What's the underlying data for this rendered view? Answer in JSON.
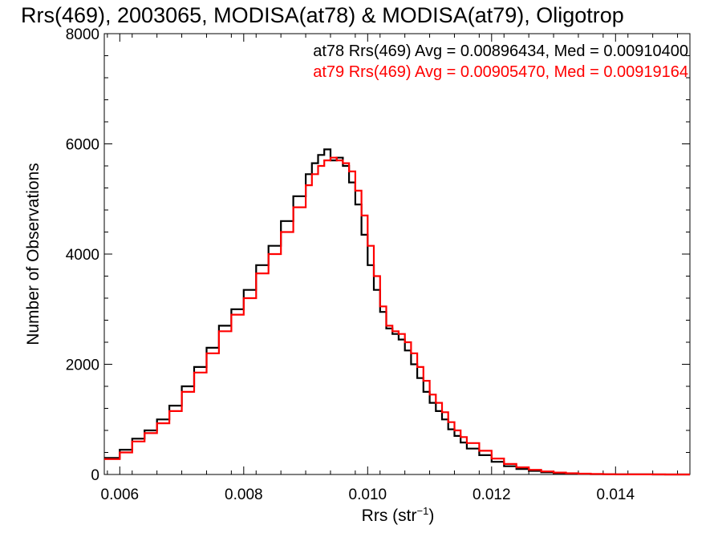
{
  "chart_data": {
    "type": "line",
    "title": "Rrs(469), 2003065, MODISA(at78) & MODISA(at79), Oligotrop",
    "xlabel": "Rrs (str",
    "xlabel_sup": "−1",
    "xlabel_close": ")",
    "ylabel": "Number of Observations",
    "xlim": [
      0.00575,
      0.0152
    ],
    "ylim": [
      0,
      8000
    ],
    "x_ticks": [
      "0.006",
      "0.008",
      "0.010",
      "0.012",
      "0.014"
    ],
    "y_ticks": [
      "0",
      "2000",
      "4000",
      "6000",
      "8000"
    ],
    "grid": false,
    "legend_position": "top-right",
    "series": [
      {
        "name": "at78 Rrs(469) Avg = 0.00896434, Med = 0.00910400",
        "color": "#000000",
        "x": [
          0.00575,
          0.006,
          0.0062,
          0.0064,
          0.0066,
          0.0068,
          0.007,
          0.0072,
          0.0074,
          0.0076,
          0.0078,
          0.008,
          0.0082,
          0.0084,
          0.0086,
          0.0088,
          0.009,
          0.0091,
          0.0092,
          0.0093,
          0.0094,
          0.0095,
          0.0096,
          0.0097,
          0.0098,
          0.0099,
          0.01,
          0.0101,
          0.0102,
          0.0103,
          0.0104,
          0.0105,
          0.0106,
          0.0107,
          0.0108,
          0.0109,
          0.011,
          0.0111,
          0.0112,
          0.0113,
          0.0114,
          0.0115,
          0.0116,
          0.0118,
          0.012,
          0.0122,
          0.0124,
          0.0126,
          0.0128,
          0.013,
          0.0132,
          0.0134,
          0.0136,
          0.0138,
          0.014,
          0.0142,
          0.0144,
          0.0146,
          0.0148,
          0.015,
          0.0152
        ],
        "y": [
          300,
          450,
          650,
          800,
          1000,
          1250,
          1600,
          1950,
          2300,
          2700,
          3000,
          3350,
          3800,
          4150,
          4600,
          5050,
          5450,
          5650,
          5800,
          5900,
          5700,
          5750,
          5600,
          5300,
          4900,
          4350,
          3800,
          3350,
          2950,
          2650,
          2550,
          2450,
          2250,
          2000,
          1750,
          1500,
          1300,
          1150,
          1000,
          820,
          700,
          580,
          470,
          350,
          230,
          150,
          100,
          65,
          40,
          25,
          15,
          10,
          6,
          4,
          2,
          1,
          1,
          0,
          0,
          0,
          0
        ]
      },
      {
        "name": "at79 Rrs(469) Avg = 0.00905470, Med = 0.00919164",
        "color": "#ff0000",
        "x": [
          0.00575,
          0.006,
          0.0062,
          0.0064,
          0.0066,
          0.0068,
          0.007,
          0.0072,
          0.0074,
          0.0076,
          0.0078,
          0.008,
          0.0082,
          0.0084,
          0.0086,
          0.0088,
          0.009,
          0.0091,
          0.0092,
          0.0093,
          0.0094,
          0.0095,
          0.0096,
          0.0097,
          0.0098,
          0.0099,
          0.01,
          0.0101,
          0.0102,
          0.0103,
          0.0104,
          0.0105,
          0.0106,
          0.0107,
          0.0108,
          0.0109,
          0.011,
          0.0111,
          0.0112,
          0.0113,
          0.0114,
          0.0115,
          0.0116,
          0.0118,
          0.012,
          0.0122,
          0.0124,
          0.0126,
          0.0128,
          0.013,
          0.0132,
          0.0134,
          0.0136,
          0.0138,
          0.014,
          0.0142,
          0.0144,
          0.0146,
          0.0148,
          0.015,
          0.0152
        ],
        "y": [
          280,
          400,
          600,
          750,
          930,
          1150,
          1500,
          1850,
          2200,
          2600,
          2900,
          3200,
          3650,
          4000,
          4400,
          4850,
          5250,
          5450,
          5600,
          5700,
          5750,
          5700,
          5650,
          5500,
          5150,
          4700,
          4150,
          3600,
          3050,
          2700,
          2600,
          2550,
          2400,
          2200,
          1950,
          1700,
          1450,
          1300,
          1130,
          950,
          800,
          680,
          570,
          430,
          290,
          190,
          130,
          85,
          55,
          35,
          22,
          14,
          9,
          5,
          3,
          2,
          1,
          1,
          0,
          0,
          0
        ]
      }
    ]
  }
}
